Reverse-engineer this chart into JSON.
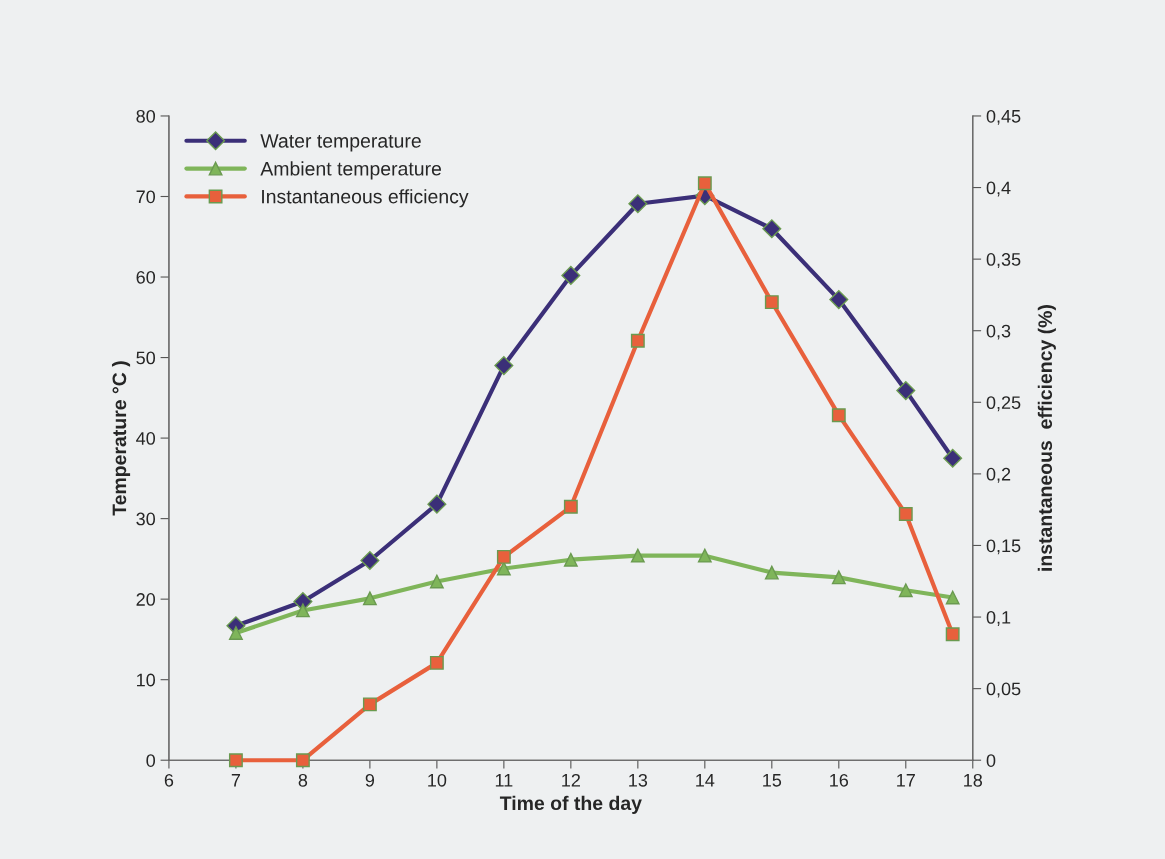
{
  "chart_data": {
    "type": "line",
    "xlabel": "Time of the day",
    "ylabel": "Temperature °C )",
    "y2label": "instantaneous  efficiency (%)",
    "xlim": [
      6,
      18
    ],
    "xticks": [
      6,
      7,
      8,
      9,
      10,
      11,
      12,
      13,
      14,
      15,
      16,
      17,
      18
    ],
    "ylim": [
      0,
      80
    ],
    "yticks": [
      0,
      10,
      20,
      30,
      40,
      50,
      60,
      70,
      80
    ],
    "y2lim": [
      0,
      0.45
    ],
    "y2ticks": [
      0,
      {
        "value": 0.05,
        "label": "0,05"
      },
      {
        "value": 0.1,
        "label": "0,1"
      },
      {
        "value": 0.15,
        "label": "0,15"
      },
      {
        "value": 0.2,
        "label": "0,2"
      },
      {
        "value": 0.25,
        "label": "0,25"
      },
      {
        "value": 0.3,
        "label": "0,3"
      },
      {
        "value": 0.35,
        "label": "0,35"
      },
      {
        "value": 0.4,
        "label": "0,4"
      },
      {
        "value": 0.45,
        "label": "0,45"
      }
    ],
    "grid": false,
    "legend": "top left",
    "line_style": "solid",
    "x": [
      7,
      8,
      9,
      10,
      11,
      12,
      13,
      14,
      15,
      16,
      17,
      17.7
    ],
    "series": [
      {
        "name": "Water temperature",
        "color": "#3b2f78",
        "marker": "diamond",
        "values": [
          16.7,
          19.7,
          24.8,
          31.8,
          49.0,
          60.2,
          69.1,
          70.1,
          66.0,
          57.2,
          45.9,
          37.5
        ]
      },
      {
        "name": "Ambient temperature",
        "color": "#7fb55a",
        "marker": "triangle",
        "values": [
          15.8,
          18.6,
          20.1,
          22.2,
          23.8,
          24.9,
          25.4,
          25.4,
          23.3,
          22.7,
          21.1,
          20.2
        ]
      },
      {
        "name": "Instantaneous efficiency",
        "color": "#e8603c",
        "marker": "square",
        "axis": "y2",
        "values": [
          0,
          0,
          0.039,
          0.068,
          0.142,
          0.177,
          0.293,
          0.403,
          0.32,
          0.241,
          0.172,
          0.088
        ]
      }
    ]
  }
}
